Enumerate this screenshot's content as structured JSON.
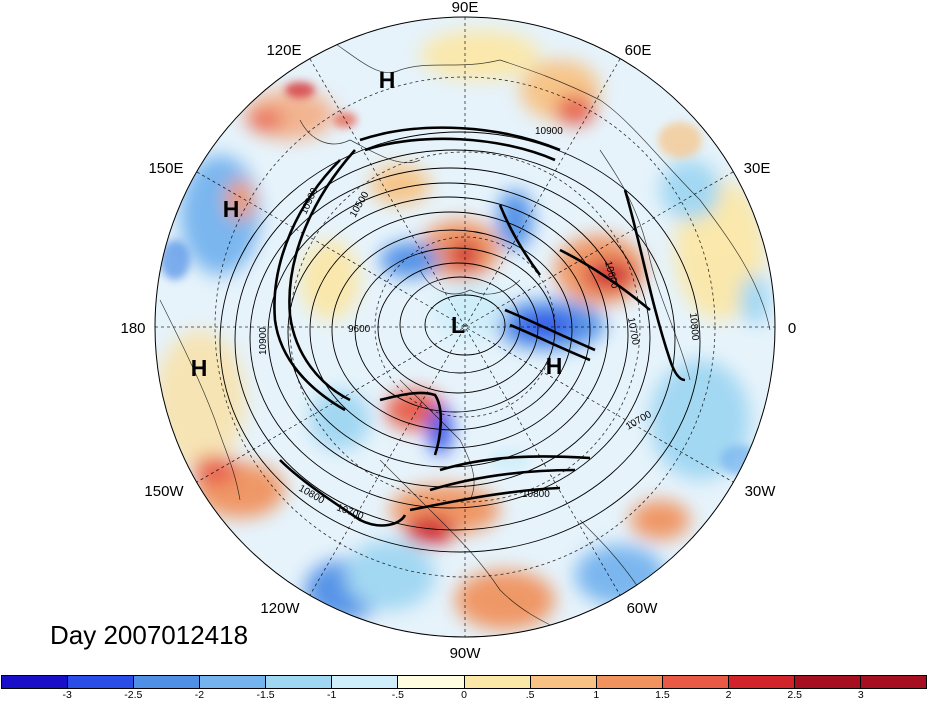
{
  "map": {
    "projection": "north polar stereographic",
    "longitude_labels": [
      "90E",
      "60E",
      "30E",
      "0",
      "30W",
      "60W",
      "90W",
      "120W",
      "150W",
      "180",
      "150E",
      "120E"
    ],
    "contour_labels": [
      "10900",
      "10800",
      "10700",
      "10600",
      "10500",
      "9600",
      "10900",
      "10700",
      "10800",
      "10700",
      "10800",
      "10900"
    ],
    "pressure_centers": [
      "H",
      "H",
      "H",
      "H",
      "L"
    ],
    "valid_time_label": "Day 2007012418"
  },
  "colorbar": {
    "ticks": [
      "-3",
      "-2.5",
      "-2",
      "-1.5",
      "-1",
      "-.5",
      "0",
      ".5",
      "1",
      "1.5",
      "2",
      "2.5",
      "3"
    ],
    "colors": [
      "#1a0fc8",
      "#2a4de8",
      "#4f8fe6",
      "#74b3ee",
      "#9fd6f2",
      "#cdeefa",
      "#fffde0",
      "#fbe7a8",
      "#f7c283",
      "#f0935e",
      "#e85a45",
      "#d0242a",
      "#a50f1f",
      "#a50f1f"
    ],
    "min": -3.5,
    "max": 3.5,
    "interval": 0.5
  },
  "colors": {
    "background": "#ffffff",
    "contour": "#000000",
    "coast": "#000000"
  }
}
